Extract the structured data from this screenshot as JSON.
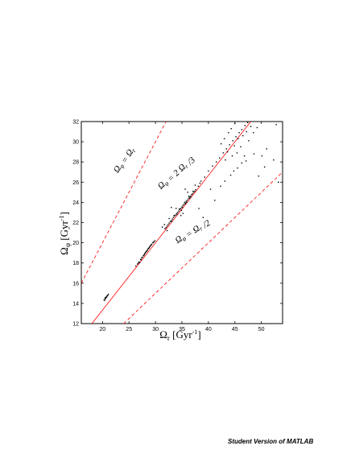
{
  "footer": "Student Version of MATLAB",
  "chart_data": {
    "type": "scatter",
    "xlabel": "Ω_r [Gyr^{-1}]",
    "ylabel": "Ω_φ [Gyr^{-1}]",
    "xlim": [
      16,
      54
    ],
    "ylim": [
      12,
      32
    ],
    "xticks": [
      20,
      25,
      30,
      35,
      40,
      45,
      50
    ],
    "yticks": [
      12,
      14,
      16,
      18,
      20,
      22,
      24,
      26,
      28,
      30,
      32
    ],
    "grid": false,
    "marker_color": "#000000",
    "line_color": "#ff0000",
    "reference_lines": [
      {
        "label": "Ω_φ = Ω_r",
        "slope": 1.0,
        "style": "dashed"
      },
      {
        "label": "Ω_φ = 2 Ω_r /3",
        "slope": 0.6667,
        "style": "solid"
      },
      {
        "label": "Ω_φ = Ω_r /2",
        "slope": 0.5,
        "style": "dashed"
      }
    ],
    "points": [
      [
        20.3,
        14.35
      ],
      [
        20.5,
        14.45
      ],
      [
        20.6,
        14.55
      ],
      [
        20.7,
        14.6
      ],
      [
        20.8,
        14.7
      ],
      [
        20.9,
        14.75
      ],
      [
        21.0,
        14.8
      ],
      [
        20.4,
        14.3
      ],
      [
        20.6,
        14.5
      ],
      [
        20.8,
        14.65
      ],
      [
        21.1,
        14.9
      ],
      [
        20.5,
        14.55
      ],
      [
        26.3,
        17.7
      ],
      [
        26.6,
        17.9
      ],
      [
        26.9,
        18.1
      ],
      [
        27.2,
        18.35
      ],
      [
        27.4,
        18.5
      ],
      [
        27.7,
        18.7
      ],
      [
        27.9,
        18.85
      ],
      [
        28.1,
        19.0
      ],
      [
        28.3,
        19.15
      ],
      [
        28.5,
        19.3
      ],
      [
        28.7,
        19.45
      ],
      [
        28.9,
        19.6
      ],
      [
        29.1,
        19.75
      ],
      [
        29.3,
        19.85
      ],
      [
        29.5,
        20.0
      ],
      [
        29.7,
        20.1
      ],
      [
        27.0,
        18.05
      ],
      [
        27.5,
        18.55
      ],
      [
        28.0,
        18.95
      ],
      [
        28.4,
        19.2
      ],
      [
        28.8,
        19.5
      ],
      [
        29.2,
        19.8
      ],
      [
        29.6,
        20.05
      ],
      [
        27.8,
        18.75
      ],
      [
        28.6,
        19.4
      ],
      [
        27.3,
        18.3
      ],
      [
        28.2,
        19.1
      ],
      [
        29.0,
        19.65
      ],
      [
        26.8,
        18.0
      ],
      [
        29.9,
        20.2
      ],
      [
        31.8,
        21.4
      ],
      [
        32.0,
        21.5
      ],
      [
        32.2,
        21.65
      ],
      [
        32.4,
        21.8
      ],
      [
        32.6,
        21.95
      ],
      [
        32.8,
        22.1
      ],
      [
        33.0,
        22.2
      ],
      [
        33.2,
        22.35
      ],
      [
        33.4,
        22.5
      ],
      [
        33.6,
        22.65
      ],
      [
        33.8,
        22.75
      ],
      [
        34.0,
        22.9
      ],
      [
        34.2,
        23.0
      ],
      [
        34.4,
        23.15
      ],
      [
        34.6,
        23.3
      ],
      [
        34.8,
        23.4
      ],
      [
        35.0,
        23.55
      ],
      [
        35.2,
        23.7
      ],
      [
        35.4,
        23.8
      ],
      [
        35.6,
        23.95
      ],
      [
        35.8,
        24.1
      ],
      [
        36.0,
        24.2
      ],
      [
        36.2,
        24.35
      ],
      [
        36.4,
        24.5
      ],
      [
        36.6,
        24.6
      ],
      [
        36.8,
        24.75
      ],
      [
        37.0,
        24.85
      ],
      [
        37.2,
        25.0
      ],
      [
        37.4,
        25.1
      ],
      [
        37.6,
        25.25
      ],
      [
        33.1,
        22.1
      ],
      [
        33.5,
        22.7
      ],
      [
        34.1,
        22.8
      ],
      [
        34.5,
        23.35
      ],
      [
        35.1,
        23.5
      ],
      [
        35.5,
        24.0
      ],
      [
        35.9,
        24.0
      ],
      [
        36.3,
        24.6
      ],
      [
        36.7,
        24.55
      ],
      [
        37.1,
        25.1
      ],
      [
        34.9,
        23.2
      ],
      [
        35.7,
        23.85
      ],
      [
        36.5,
        24.4
      ],
      [
        31.3,
        21.55
      ],
      [
        31.7,
        21.8
      ],
      [
        32.2,
        21.2
      ],
      [
        33.9,
        23.4
      ],
      [
        36.1,
        25.0
      ],
      [
        37.5,
        25.7
      ],
      [
        38.1,
        25.6
      ],
      [
        32.6,
        22.4
      ],
      [
        34.8,
        22.7
      ],
      [
        35.2,
        22.9
      ],
      [
        38.4,
        25.9
      ],
      [
        33.0,
        23.5
      ],
      [
        35.6,
        25.3
      ],
      [
        38.6,
        26.1
      ],
      [
        39.3,
        26.5
      ],
      [
        40.0,
        27.1
      ],
      [
        40.8,
        27.6
      ],
      [
        41.5,
        28.0
      ],
      [
        42.1,
        28.4
      ],
      [
        42.8,
        28.9
      ],
      [
        43.4,
        29.3
      ],
      [
        44.0,
        29.7
      ],
      [
        44.6,
        30.1
      ],
      [
        45.2,
        30.5
      ],
      [
        45.8,
        30.9
      ],
      [
        46.3,
        31.2
      ],
      [
        46.9,
        31.6
      ],
      [
        47.4,
        31.9
      ],
      [
        42.4,
        29.8
      ],
      [
        43.0,
        30.3
      ],
      [
        43.8,
        30.9
      ],
      [
        44.3,
        31.3
      ],
      [
        45.0,
        31.8
      ],
      [
        43.6,
        29.0
      ],
      [
        44.9,
        29.6
      ],
      [
        45.6,
        30.3
      ],
      [
        46.5,
        30.6
      ],
      [
        47.2,
        31.0
      ],
      [
        48.0,
        31.5
      ],
      [
        44.5,
        28.6
      ],
      [
        45.4,
        28.9
      ],
      [
        46.1,
        29.5
      ],
      [
        47.6,
        30.1
      ],
      [
        48.5,
        30.9
      ],
      [
        49.2,
        31.4
      ],
      [
        43.2,
        28.2
      ],
      [
        46.8,
        28.6
      ],
      [
        41.2,
        24.2
      ],
      [
        42.3,
        25.6
      ],
      [
        43.1,
        26.1
      ],
      [
        44.2,
        26.7
      ],
      [
        45.5,
        27.4
      ],
      [
        46.3,
        27.9
      ],
      [
        47.1,
        28.1
      ],
      [
        48.6,
        28.8
      ],
      [
        50.1,
        28.6
      ],
      [
        51.0,
        29.3
      ],
      [
        52.3,
        28.2
      ],
      [
        49.5,
        26.6
      ],
      [
        50.6,
        27.5
      ],
      [
        53.2,
        26.0
      ],
      [
        38.2,
        23.4
      ],
      [
        39.0,
        22.5
      ],
      [
        37.3,
        21.3
      ],
      [
        40.4,
        25.3
      ],
      [
        44.8,
        27.1
      ],
      [
        52.8,
        31.7
      ]
    ]
  }
}
